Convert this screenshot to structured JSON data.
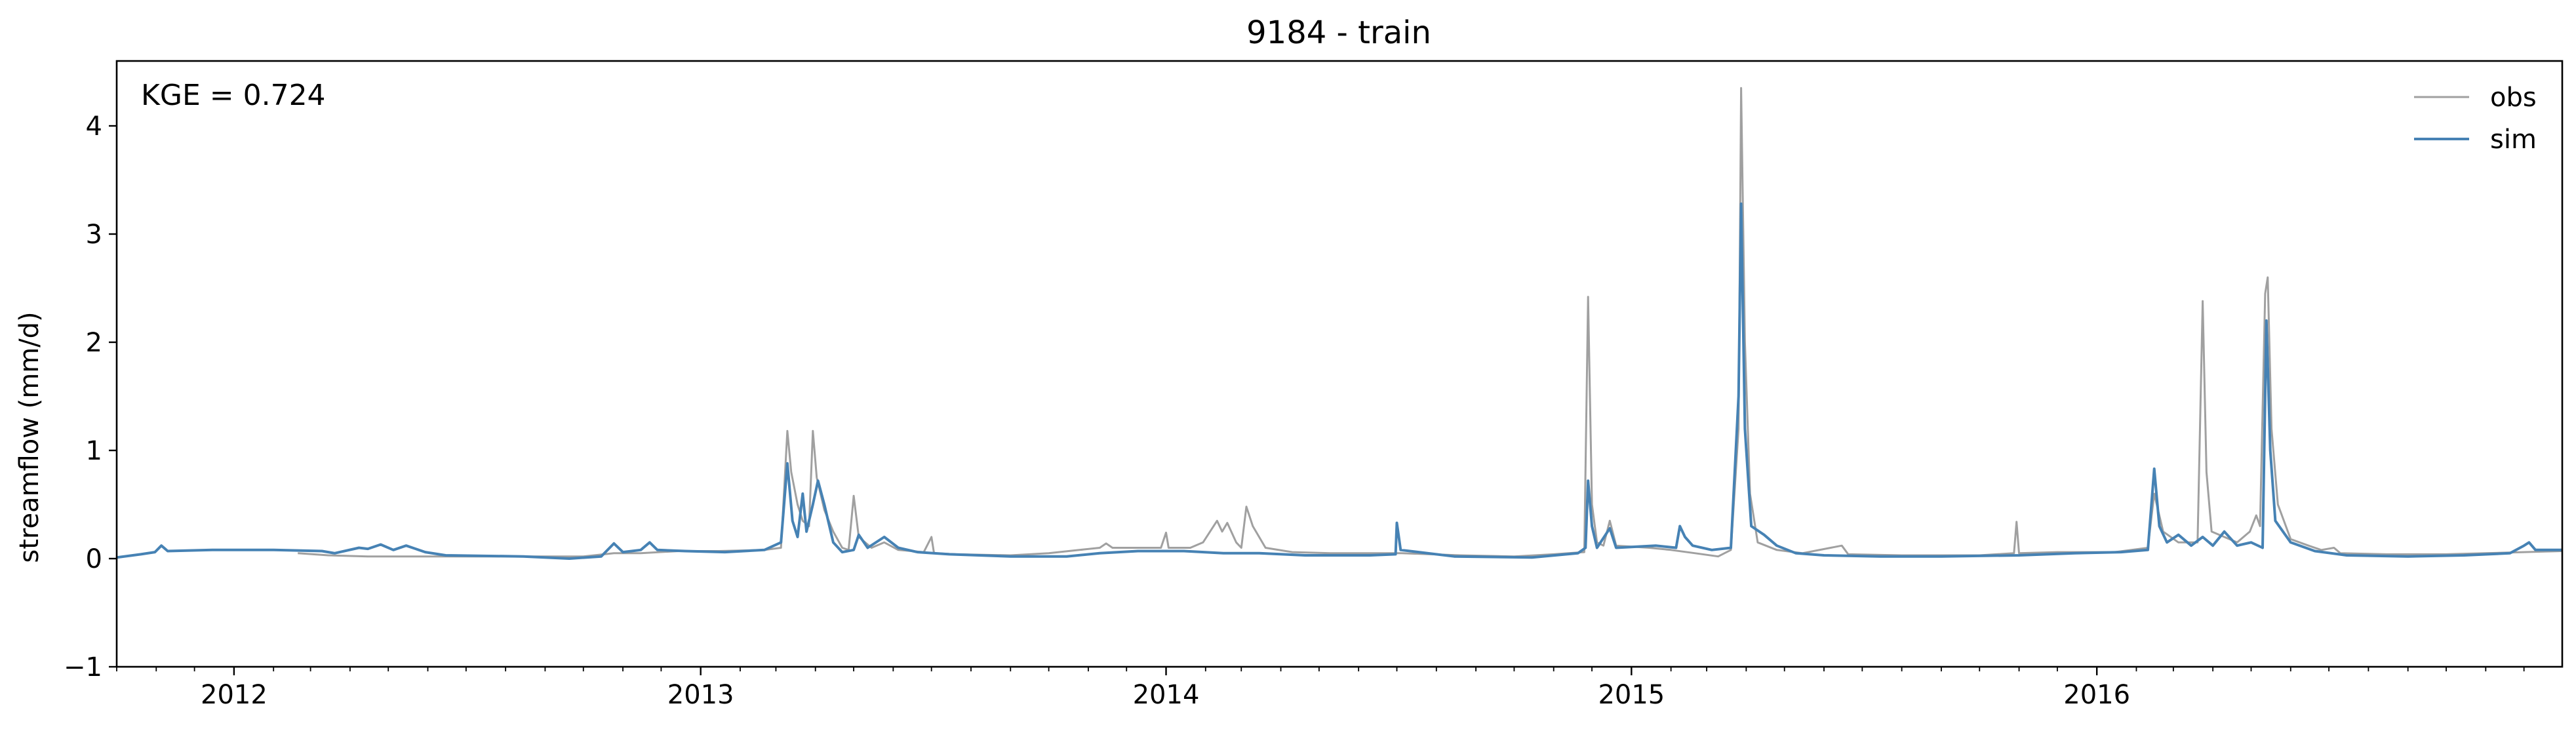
{
  "chart_data": {
    "type": "line",
    "title": "9184 - train",
    "xlabel": "",
    "ylabel": "streamflow (mm/d)",
    "annotation": "KGE = 0.724",
    "legend_position": "top-right",
    "grid": false,
    "xlim": [
      "2011-10-01",
      "2016-12-31"
    ],
    "ylim": [
      -1,
      4.6
    ],
    "y_ticks": [
      -1,
      0,
      1,
      2,
      3,
      4
    ],
    "x_ticks": [
      {
        "date": "2012-01-01",
        "label": "2012"
      },
      {
        "date": "2013-01-01",
        "label": "2013"
      },
      {
        "date": "2014-01-01",
        "label": "2014"
      },
      {
        "date": "2015-01-01",
        "label": "2015"
      },
      {
        "date": "2016-01-01",
        "label": "2016"
      }
    ],
    "series": [
      {
        "name": "obs",
        "color": "#a0a0a0",
        "points": [
          [
            "2012-02-20",
            0.05
          ],
          [
            "2012-03-15",
            0.03
          ],
          [
            "2012-04-15",
            0.02
          ],
          [
            "2012-06-01",
            0.02
          ],
          [
            "2012-08-01",
            0.02
          ],
          [
            "2012-10-01",
            0.02
          ],
          [
            "2012-10-25",
            0.05
          ],
          [
            "2012-11-15",
            0.05
          ],
          [
            "2012-12-15",
            0.07
          ],
          [
            "2013-01-15",
            0.07
          ],
          [
            "2013-02-20",
            0.08
          ],
          [
            "2013-03-05",
            0.1
          ],
          [
            "2013-03-10",
            1.18
          ],
          [
            "2013-03-13",
            0.8
          ],
          [
            "2013-03-18",
            0.5
          ],
          [
            "2013-03-22",
            0.35
          ],
          [
            "2013-03-27",
            0.3
          ],
          [
            "2013-03-30",
            1.18
          ],
          [
            "2013-04-02",
            0.75
          ],
          [
            "2013-04-08",
            0.45
          ],
          [
            "2013-04-15",
            0.25
          ],
          [
            "2013-04-22",
            0.1
          ],
          [
            "2013-04-27",
            0.08
          ],
          [
            "2013-05-01",
            0.58
          ],
          [
            "2013-05-05",
            0.2
          ],
          [
            "2013-05-15",
            0.1
          ],
          [
            "2013-05-25",
            0.15
          ],
          [
            "2013-06-05",
            0.08
          ],
          [
            "2013-06-25",
            0.06
          ],
          [
            "2013-07-01",
            0.2
          ],
          [
            "2013-07-03",
            0.05
          ],
          [
            "2013-07-20",
            0.04
          ],
          [
            "2013-09-01",
            0.03
          ],
          [
            "2013-10-01",
            0.05
          ],
          [
            "2013-10-25",
            0.08
          ],
          [
            "2013-11-10",
            0.1
          ],
          [
            "2013-11-15",
            0.14
          ],
          [
            "2013-11-20",
            0.1
          ],
          [
            "2013-12-15",
            0.1
          ],
          [
            "2013-12-28",
            0.1
          ],
          [
            "2014-01-01",
            0.24
          ],
          [
            "2014-01-03",
            0.1
          ],
          [
            "2014-01-20",
            0.1
          ],
          [
            "2014-01-30",
            0.15
          ],
          [
            "2014-02-10",
            0.35
          ],
          [
            "2014-02-14",
            0.25
          ],
          [
            "2014-02-18",
            0.33
          ],
          [
            "2014-02-25",
            0.15
          ],
          [
            "2014-03-01",
            0.1
          ],
          [
            "2014-03-05",
            0.48
          ],
          [
            "2014-03-10",
            0.3
          ],
          [
            "2014-03-20",
            0.1
          ],
          [
            "2014-04-10",
            0.06
          ],
          [
            "2014-05-10",
            0.05
          ],
          [
            "2014-06-15",
            0.05
          ],
          [
            "2014-07-05",
            0.05
          ],
          [
            "2014-08-20",
            0.03
          ],
          [
            "2014-10-01",
            0.02
          ],
          [
            "2014-11-01",
            0.04
          ],
          [
            "2014-11-25",
            0.06
          ],
          [
            "2014-11-28",
            2.42
          ],
          [
            "2014-12-01",
            0.5
          ],
          [
            "2014-12-05",
            0.15
          ],
          [
            "2014-12-10",
            0.12
          ],
          [
            "2014-12-15",
            0.35
          ],
          [
            "2014-12-20",
            0.12
          ],
          [
            "2015-01-15",
            0.1
          ],
          [
            "2015-02-01",
            0.08
          ],
          [
            "2015-02-20",
            0.05
          ],
          [
            "2015-03-10",
            0.02
          ],
          [
            "2015-03-20",
            0.08
          ],
          [
            "2015-03-26",
            1.2
          ],
          [
            "2015-03-28",
            4.35
          ],
          [
            "2015-03-31",
            2.0
          ],
          [
            "2015-04-04",
            0.6
          ],
          [
            "2015-04-10",
            0.15
          ],
          [
            "2015-04-25",
            0.08
          ],
          [
            "2015-05-15",
            0.05
          ],
          [
            "2015-06-15",
            0.12
          ],
          [
            "2015-06-20",
            0.04
          ],
          [
            "2015-08-01",
            0.03
          ],
          [
            "2015-10-01",
            0.03
          ],
          [
            "2015-10-28",
            0.05
          ],
          [
            "2015-10-30",
            0.34
          ],
          [
            "2015-11-01",
            0.05
          ],
          [
            "2015-12-01",
            0.06
          ],
          [
            "2016-01-15",
            0.06
          ],
          [
            "2016-02-10",
            0.1
          ],
          [
            "2016-02-15",
            0.6
          ],
          [
            "2016-02-22",
            0.25
          ],
          [
            "2016-03-05",
            0.15
          ],
          [
            "2016-03-20",
            0.15
          ],
          [
            "2016-03-24",
            2.38
          ],
          [
            "2016-03-27",
            0.8
          ],
          [
            "2016-03-31",
            0.25
          ],
          [
            "2016-04-10",
            0.2
          ],
          [
            "2016-04-20",
            0.15
          ],
          [
            "2016-04-30",
            0.25
          ],
          [
            "2016-05-05",
            0.4
          ],
          [
            "2016-05-08",
            0.3
          ],
          [
            "2016-05-12",
            2.45
          ],
          [
            "2016-05-14",
            2.6
          ],
          [
            "2016-05-17",
            1.2
          ],
          [
            "2016-05-22",
            0.5
          ],
          [
            "2016-06-01",
            0.18
          ],
          [
            "2016-06-15",
            0.12
          ],
          [
            "2016-06-25",
            0.08
          ],
          [
            "2016-07-05",
            0.1
          ],
          [
            "2016-07-10",
            0.05
          ],
          [
            "2016-08-15",
            0.04
          ],
          [
            "2016-10-01",
            0.04
          ],
          [
            "2016-11-01",
            0.05
          ],
          [
            "2016-12-01",
            0.06
          ],
          [
            "2016-12-31",
            0.07
          ]
        ]
      },
      {
        "name": "sim",
        "color": "#4682b4",
        "points": [
          [
            "2011-10-01",
            0.01
          ],
          [
            "2011-10-20",
            0.04
          ],
          [
            "2011-10-31",
            0.06
          ],
          [
            "2011-11-05",
            0.12
          ],
          [
            "2011-11-10",
            0.07
          ],
          [
            "2011-12-15",
            0.08
          ],
          [
            "2012-02-01",
            0.08
          ],
          [
            "2012-03-10",
            0.07
          ],
          [
            "2012-03-20",
            0.05
          ],
          [
            "2012-04-08",
            0.1
          ],
          [
            "2012-04-15",
            0.09
          ],
          [
            "2012-04-25",
            0.13
          ],
          [
            "2012-05-05",
            0.08
          ],
          [
            "2012-05-15",
            0.12
          ],
          [
            "2012-05-30",
            0.06
          ],
          [
            "2012-06-15",
            0.03
          ],
          [
            "2012-08-15",
            0.02
          ],
          [
            "2012-09-20",
            0.0
          ],
          [
            "2012-10-15",
            0.02
          ],
          [
            "2012-10-25",
            0.14
          ],
          [
            "2012-11-01",
            0.06
          ],
          [
            "2012-11-15",
            0.08
          ],
          [
            "2012-11-22",
            0.15
          ],
          [
            "2012-11-28",
            0.08
          ],
          [
            "2012-12-20",
            0.07
          ],
          [
            "2013-01-20",
            0.06
          ],
          [
            "2013-02-20",
            0.08
          ],
          [
            "2013-03-05",
            0.15
          ],
          [
            "2013-03-10",
            0.88
          ],
          [
            "2013-03-14",
            0.35
          ],
          [
            "2013-03-18",
            0.2
          ],
          [
            "2013-03-22",
            0.6
          ],
          [
            "2013-03-25",
            0.25
          ],
          [
            "2013-03-30",
            0.5
          ],
          [
            "2013-04-03",
            0.72
          ],
          [
            "2013-04-08",
            0.5
          ],
          [
            "2013-04-15",
            0.15
          ],
          [
            "2013-04-22",
            0.06
          ],
          [
            "2013-05-01",
            0.08
          ],
          [
            "2013-05-05",
            0.22
          ],
          [
            "2013-05-12",
            0.1
          ],
          [
            "2013-05-25",
            0.2
          ],
          [
            "2013-06-05",
            0.1
          ],
          [
            "2013-06-20",
            0.06
          ],
          [
            "2013-07-15",
            0.04
          ],
          [
            "2013-09-01",
            0.02
          ],
          [
            "2013-10-15",
            0.02
          ],
          [
            "2013-11-10",
            0.05
          ],
          [
            "2013-12-10",
            0.07
          ],
          [
            "2014-01-15",
            0.07
          ],
          [
            "2014-02-15",
            0.05
          ],
          [
            "2014-03-15",
            0.05
          ],
          [
            "2014-04-20",
            0.03
          ],
          [
            "2014-06-10",
            0.03
          ],
          [
            "2014-06-30",
            0.04
          ],
          [
            "2014-07-01",
            0.33
          ],
          [
            "2014-07-04",
            0.08
          ],
          [
            "2014-08-15",
            0.02
          ],
          [
            "2014-10-15",
            0.01
          ],
          [
            "2014-11-20",
            0.05
          ],
          [
            "2014-11-26",
            0.1
          ],
          [
            "2014-11-28",
            0.72
          ],
          [
            "2014-12-01",
            0.3
          ],
          [
            "2014-12-05",
            0.1
          ],
          [
            "2014-12-15",
            0.28
          ],
          [
            "2014-12-20",
            0.1
          ],
          [
            "2015-01-20",
            0.12
          ],
          [
            "2015-02-05",
            0.1
          ],
          [
            "2015-02-08",
            0.3
          ],
          [
            "2015-02-12",
            0.2
          ],
          [
            "2015-02-18",
            0.12
          ],
          [
            "2015-03-05",
            0.08
          ],
          [
            "2015-03-20",
            0.1
          ],
          [
            "2015-03-26",
            1.5
          ],
          [
            "2015-03-28",
            3.28
          ],
          [
            "2015-03-31",
            1.2
          ],
          [
            "2015-04-05",
            0.3
          ],
          [
            "2015-04-15",
            0.22
          ],
          [
            "2015-04-25",
            0.12
          ],
          [
            "2015-05-10",
            0.05
          ],
          [
            "2015-06-01",
            0.03
          ],
          [
            "2015-07-15",
            0.02
          ],
          [
            "2015-09-01",
            0.02
          ],
          [
            "2015-11-01",
            0.03
          ],
          [
            "2015-12-15",
            0.05
          ],
          [
            "2016-01-20",
            0.06
          ],
          [
            "2016-02-10",
            0.08
          ],
          [
            "2016-02-15",
            0.83
          ],
          [
            "2016-02-19",
            0.3
          ],
          [
            "2016-02-25",
            0.15
          ],
          [
            "2016-03-05",
            0.22
          ],
          [
            "2016-03-15",
            0.12
          ],
          [
            "2016-03-24",
            0.2
          ],
          [
            "2016-04-01",
            0.12
          ],
          [
            "2016-04-10",
            0.25
          ],
          [
            "2016-04-20",
            0.12
          ],
          [
            "2016-05-01",
            0.15
          ],
          [
            "2016-05-10",
            0.1
          ],
          [
            "2016-05-13",
            2.2
          ],
          [
            "2016-05-16",
            1.0
          ],
          [
            "2016-05-20",
            0.35
          ],
          [
            "2016-06-01",
            0.15
          ],
          [
            "2016-06-20",
            0.07
          ],
          [
            "2016-07-15",
            0.03
          ],
          [
            "2016-09-01",
            0.02
          ],
          [
            "2016-10-15",
            0.03
          ],
          [
            "2016-11-20",
            0.05
          ],
          [
            "2016-12-01",
            0.12
          ],
          [
            "2016-12-05",
            0.15
          ],
          [
            "2016-12-10",
            0.08
          ],
          [
            "2016-12-31",
            0.08
          ]
        ]
      }
    ]
  }
}
